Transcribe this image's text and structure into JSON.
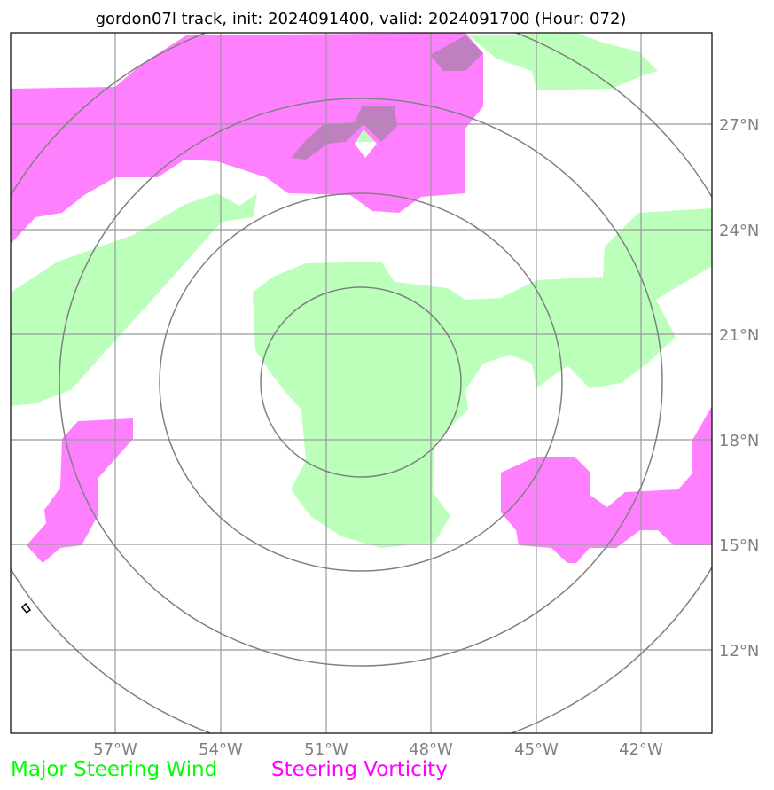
{
  "title": "gordon07l track, init: 2024091400, valid: 2024091700 (Hour: 072)",
  "map": {
    "lon_labels": [
      "57°W",
      "54°W",
      "51°W",
      "48°W",
      "45°W",
      "42°W"
    ],
    "lat_labels": [
      "27°N",
      "24°N",
      "21°N",
      "18°N",
      "15°N",
      "12°N"
    ],
    "range_rings": 4,
    "colors": {
      "steering_wind": "#bbffbb",
      "steering_vorticity": "#ff80ff",
      "overlap": "#c080c0",
      "grid": "#999999",
      "ring": "#808080"
    }
  },
  "legend": {
    "wind_label": "Major Steering Wind",
    "wind_color": "#00ff00",
    "vorticity_label": "Steering Vorticity",
    "vorticity_color": "#ff00ff"
  }
}
